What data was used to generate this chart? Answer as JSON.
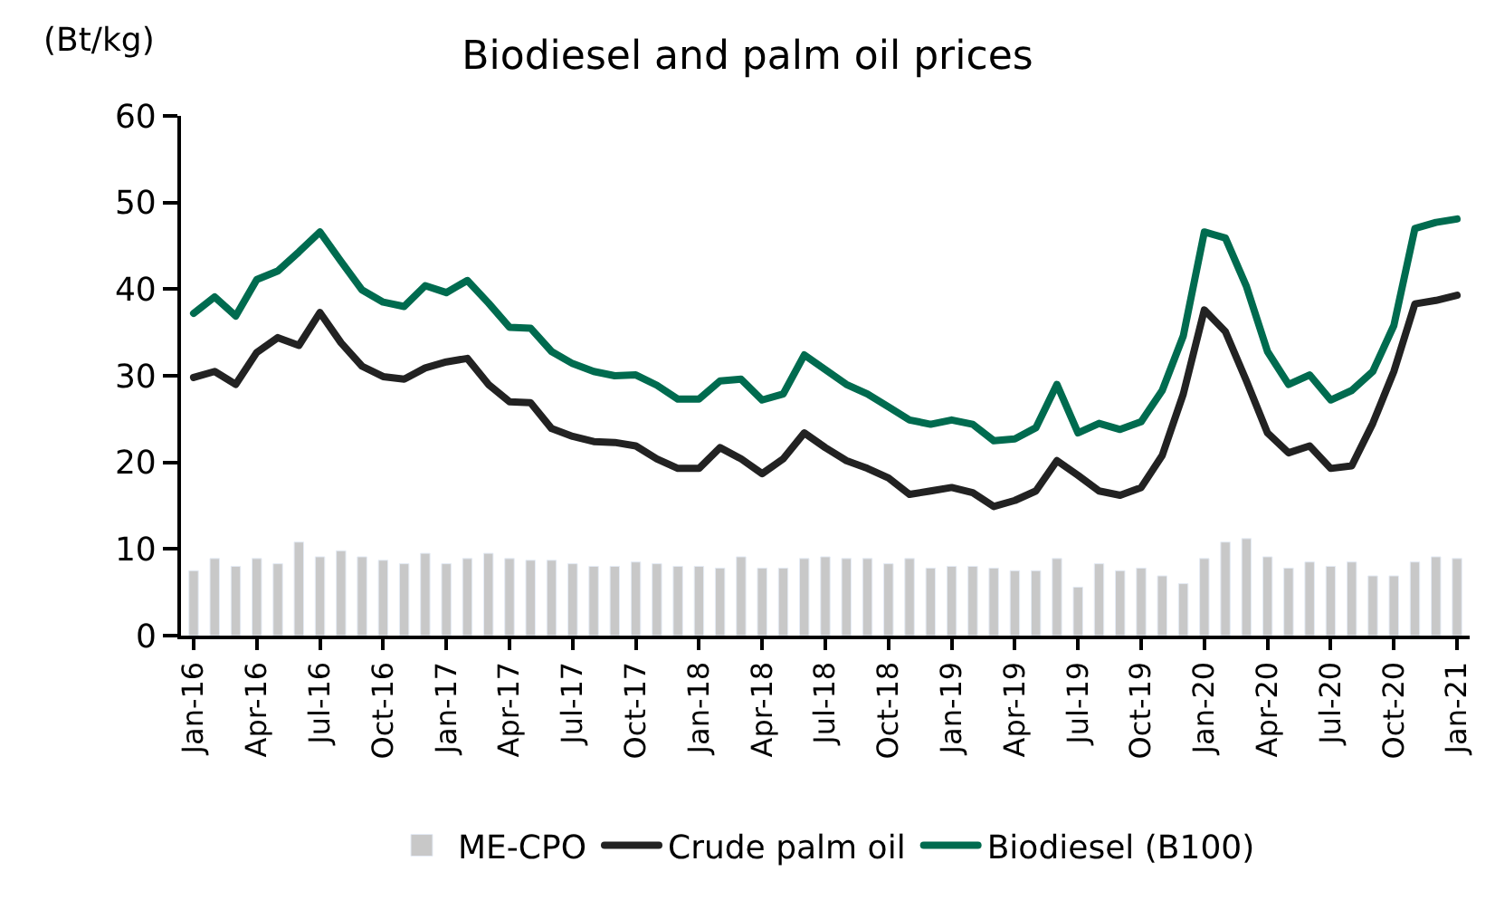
{
  "chart_data": {
    "type": "line",
    "title": "Biodiesel and palm oil prices",
    "ylabel": "(Bt/kg)",
    "categories": [
      "Jan-16",
      null,
      null,
      "Apr-16",
      null,
      null,
      "Jul-16",
      null,
      null,
      "Oct-16",
      null,
      null,
      "Jan-17",
      null,
      null,
      "Apr-17",
      null,
      null,
      "Jul-17",
      null,
      null,
      "Oct-17",
      null,
      null,
      "Jan-18",
      null,
      null,
      "Apr-18",
      null,
      null,
      "Jul-18",
      null,
      null,
      "Oct-18",
      null,
      null,
      "Jan-19",
      null,
      null,
      "Apr-19",
      null,
      null,
      "Jul-19",
      null,
      null,
      "Oct-19",
      null,
      null,
      "Jan-20",
      null,
      null,
      "Apr-20",
      null,
      null,
      "Jul-20",
      null,
      null,
      "Oct-20",
      null,
      null,
      "Jan-21"
    ],
    "series": [
      {
        "name": "ME-CPO",
        "type": "bar",
        "color": "#c8c8c8",
        "values": [
          7.5,
          8.9,
          8,
          8.9,
          8.3,
          10.8,
          9.1,
          9.8,
          9.1,
          8.7,
          8.3,
          9.5,
          8.3,
          8.9,
          9.5,
          8.9,
          8.7,
          8.7,
          8.3,
          8,
          8,
          8.5,
          8.3,
          8,
          8,
          7.8,
          9.1,
          7.8,
          7.8,
          8.9,
          9.1,
          8.9,
          8.9,
          8.3,
          8.9,
          7.8,
          8,
          8,
          7.8,
          7.5,
          7.5,
          8.9,
          5.6,
          8.3,
          7.5,
          7.8,
          6.9,
          6,
          8.9,
          10.8,
          11.2,
          9.1,
          7.8,
          8.5,
          8,
          8.5,
          6.9,
          6.9,
          8.5,
          9.1,
          8.9
        ]
      },
      {
        "name": "Crude palm oil",
        "color": "#222222",
        "values": [
          29.8,
          30.5,
          29,
          32.7,
          34.4,
          33.5,
          37.3,
          33.8,
          31.1,
          29.9,
          29.6,
          30.9,
          31.6,
          32,
          29,
          27,
          26.9,
          23.9,
          23,
          22.4,
          22.3,
          21.9,
          20.4,
          19.3,
          19.3,
          21.7,
          20.4,
          18.7,
          20.4,
          23.4,
          21.7,
          20.2,
          19.3,
          18.2,
          16.3,
          16.7,
          17.1,
          16.5,
          14.9,
          15.6,
          16.7,
          20.2,
          18.5,
          16.7,
          16.2,
          17.1,
          20.8,
          27.9,
          37.6,
          35.1,
          29.4,
          23.4,
          21.1,
          21.9,
          19.3,
          19.6,
          24.5,
          30.5,
          38.3,
          38.7,
          39.3
        ]
      },
      {
        "name": "Biodiesel (B100)",
        "color": "#006b4f",
        "values": [
          37.2,
          39.1,
          36.9,
          41.1,
          42.1,
          44.3,
          46.6,
          43.2,
          39.9,
          38.5,
          38,
          40.4,
          39.6,
          41,
          38.4,
          35.6,
          35.5,
          32.8,
          31.4,
          30.5,
          30,
          30.1,
          28.9,
          27.3,
          27.3,
          29.4,
          29.6,
          27.2,
          27.9,
          32.4,
          30.7,
          29,
          27.9,
          26.4,
          24.9,
          24.4,
          24.9,
          24.4,
          22.5,
          22.7,
          24,
          29,
          23.4,
          24.5,
          23.8,
          24.7,
          28.3,
          34.6,
          46.6,
          45.9,
          40.3,
          32.8,
          29,
          30.1,
          27.2,
          28.3,
          30.5,
          35.8,
          47,
          47.7,
          48.1
        ]
      }
    ],
    "ylim": [
      0,
      60
    ],
    "yticks": [
      0,
      10,
      20,
      30,
      40,
      50,
      60
    ],
    "legend": "bottom",
    "line_style": "solid",
    "marker": "none"
  }
}
